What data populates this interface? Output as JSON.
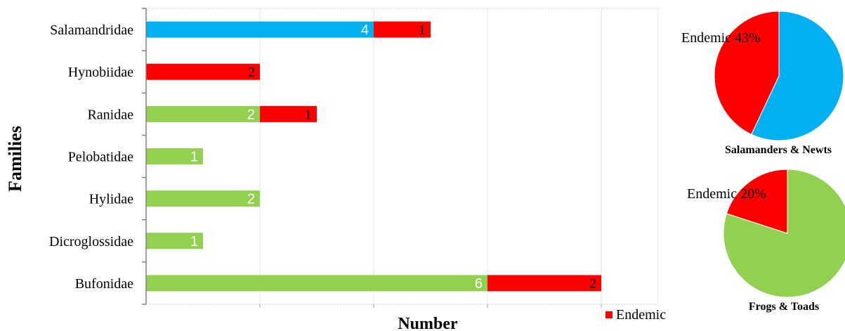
{
  "chart_data": [
    {
      "type": "bar",
      "stacked": true,
      "orientation": "horizontal",
      "ylabel": "Families",
      "xlabel": "Number",
      "categories": [
        "Salamandridae",
        "Hynobiidae",
        "Ranidae",
        "Pelobatidae",
        "Hylidae",
        "Dicroglossidae",
        "Bufonidae"
      ],
      "series": [
        {
          "values": [
            4,
            0,
            2,
            1,
            2,
            1,
            6
          ],
          "colors": [
            "#00b0f0",
            "#00b0f0",
            "#92d050",
            "#92d050",
            "#92d050",
            "#92d050",
            "#92d050"
          ]
        },
        {
          "name": "Endemic",
          "values": [
            1,
            2,
            1,
            0,
            0,
            0,
            2
          ],
          "color": "#ff0000"
        }
      ],
      "xlim": [
        0,
        9
      ],
      "grid": "vertical",
      "legend": {
        "position": "bottom-right",
        "label": "Endemic",
        "color": "#ff0000"
      }
    },
    {
      "type": "pie",
      "title": "Salamanders  & Newts",
      "slices": [
        {
          "label": "Endemic 43%",
          "value": 43,
          "color": "#ff0000"
        },
        {
          "value": 57,
          "color": "#00b0f0"
        }
      ]
    },
    {
      "type": "pie",
      "title": "Frogs & Toads",
      "slices": [
        {
          "label": "Endemic 20%",
          "value": 20,
          "color": "#ff0000"
        },
        {
          "value": 80,
          "color": "#92d050"
        }
      ]
    }
  ]
}
